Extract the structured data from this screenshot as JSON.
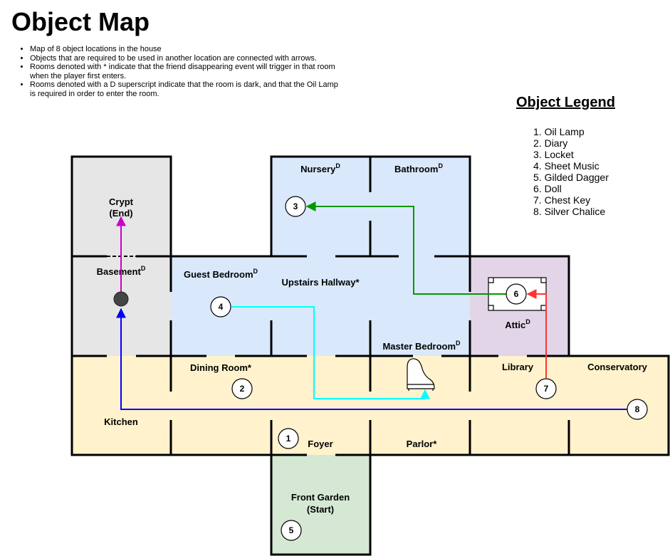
{
  "title": "Object Map",
  "notes": [
    "Map of 8 object locations in the house",
    "Objects that are required to be used in another location are connected with arrows.",
    "Rooms denoted with * indicate that the friend disappearing event will trigger in that room when the player first enters.",
    "Rooms denoted with a D superscript indicate that the room is dark, and that the Oil Lamp is required in order to enter the room."
  ],
  "legend": {
    "title": "Object Legend",
    "items": [
      "Oil Lamp",
      "Diary",
      "Locket",
      "Sheet Music",
      "Gilded Dagger",
      "Doll",
      "Chest Key",
      "Silver Chalice"
    ]
  },
  "rooms": {
    "crypt": {
      "line1": "Crypt",
      "line2": "(End)"
    },
    "basement": {
      "label": "Basement",
      "sup": "D"
    },
    "nursery": {
      "label": "Nursery",
      "sup": "D"
    },
    "bathroom": {
      "label": "Bathroom",
      "sup": "D"
    },
    "guest_bedroom": {
      "label": "Guest Bedroom",
      "sup": "D"
    },
    "upstairs_hallway": {
      "label": "Upstairs Hallway*"
    },
    "master_bedroom": {
      "label": "Master Bedroom",
      "sup": "D"
    },
    "attic": {
      "label": "Attic",
      "sup": "D"
    },
    "dining_room": {
      "label": "Dining Room*"
    },
    "library": {
      "label": "Library"
    },
    "conservatory": {
      "label": "Conservatory"
    },
    "kitchen": {
      "label": "Kitchen"
    },
    "foyer": {
      "label": "Foyer"
    },
    "parlor": {
      "label": "Parlor*"
    },
    "front_garden": {
      "line1": "Front Garden",
      "line2": "(Start)"
    }
  },
  "markers": [
    "1",
    "2",
    "3",
    "4",
    "5",
    "6",
    "7",
    "8"
  ],
  "colors": {
    "dark_room": "#e6e6e6",
    "upstairs": "#dae8fc",
    "ground_floor": "#fff2cc",
    "attic": "#e1d5e7",
    "garden": "#d5e8d4",
    "arrow_magenta": "#cc00cc",
    "arrow_blue": "#0000ff",
    "arrow_green": "#009900",
    "arrow_cyan": "#00ffff",
    "arrow_red": "#ff3333"
  }
}
